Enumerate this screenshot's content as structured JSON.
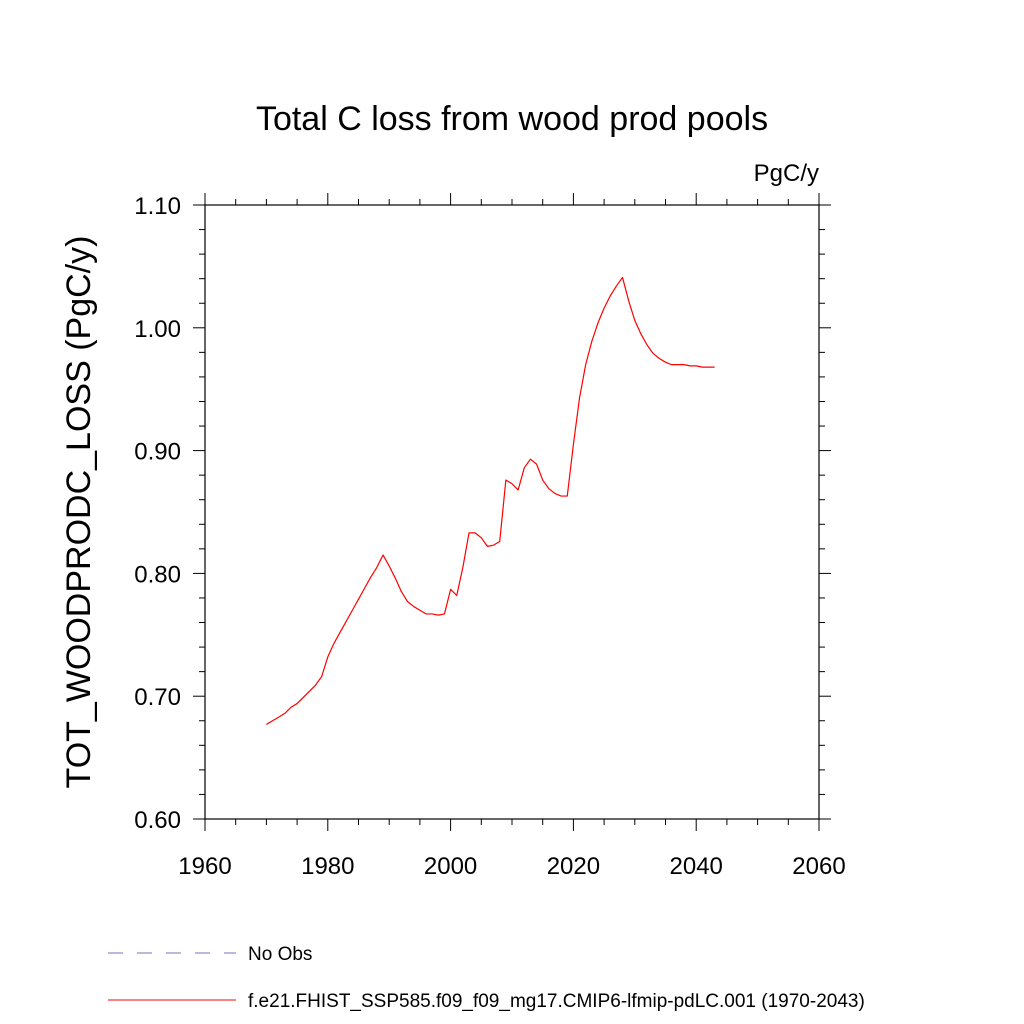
{
  "chart_data": {
    "type": "line",
    "title": "Total C loss from wood prod pools",
    "units": "PgC/y",
    "ylabel": "TOT_WOODPRODC_LOSS  (PgC/y)",
    "xlabel": "",
    "xlim": [
      1960,
      2060
    ],
    "ylim": [
      0.6,
      1.1
    ],
    "x_ticks": [
      "1960",
      "1980",
      "2000",
      "2020",
      "2040",
      "2060"
    ],
    "y_ticks": [
      "0.60",
      "0.70",
      "0.80",
      "0.90",
      "1.00",
      "1.10"
    ],
    "grid": false,
    "legend_position": "bottom-left",
    "series": [
      {
        "name": "No Obs",
        "color": "#7070c0",
        "dash": "dashed",
        "x": [],
        "y": []
      },
      {
        "name": "f.e21.FHIST_SSP585.f09_f09_mg17.CMIP6-lfmip-pdLC.001 (1970-2043)",
        "color": "#ff0000",
        "dash": "solid",
        "x": [
          1970,
          1971,
          1972,
          1973,
          1974,
          1975,
          1976,
          1977,
          1978,
          1979,
          1980,
          1981,
          1982,
          1983,
          1984,
          1985,
          1986,
          1987,
          1988,
          1989,
          1990,
          1991,
          1992,
          1993,
          1994,
          1995,
          1996,
          1997,
          1998,
          1999,
          2000,
          2001,
          2002,
          2003,
          2004,
          2005,
          2006,
          2007,
          2008,
          2009,
          2010,
          2011,
          2012,
          2013,
          2014,
          2015,
          2016,
          2017,
          2018,
          2019,
          2020,
          2021,
          2022,
          2023,
          2024,
          2025,
          2026,
          2027,
          2028,
          2029,
          2030,
          2031,
          2032,
          2033,
          2034,
          2035,
          2036,
          2037,
          2038,
          2039,
          2040,
          2041,
          2042,
          2043
        ],
        "y": [
          0.677,
          0.68,
          0.683,
          0.686,
          0.691,
          0.694,
          0.699,
          0.704,
          0.709,
          0.716,
          0.732,
          0.743,
          0.752,
          0.761,
          0.77,
          0.779,
          0.788,
          0.797,
          0.805,
          0.815,
          0.806,
          0.796,
          0.785,
          0.777,
          0.773,
          0.77,
          0.767,
          0.767,
          0.766,
          0.767,
          0.787,
          0.782,
          0.805,
          0.833,
          0.833,
          0.829,
          0.822,
          0.823,
          0.826,
          0.876,
          0.873,
          0.868,
          0.886,
          0.893,
          0.889,
          0.876,
          0.869,
          0.865,
          0.863,
          0.863,
          0.905,
          0.943,
          0.97,
          0.989,
          1.004,
          1.016,
          1.026,
          1.034,
          1.041,
          1.022,
          1.006,
          0.995,
          0.986,
          0.979,
          0.975,
          0.972,
          0.97,
          0.97,
          0.97,
          0.969,
          0.969,
          0.968,
          0.968,
          0.968
        ]
      }
    ]
  }
}
